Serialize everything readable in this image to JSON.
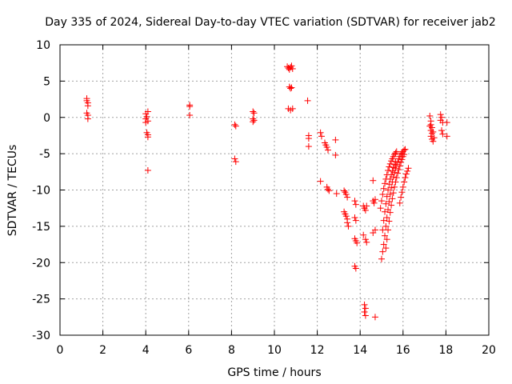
{
  "chart_data": {
    "type": "scatter",
    "title": "Day 335 of 2024, Sidereal Day-to-day VTEC variation (SDTVAR) for receiver jab2",
    "xlabel": "GPS time / hours",
    "ylabel": "SDTVAR / TECUs",
    "xlim": [
      0,
      20
    ],
    "ylim": [
      -30,
      10
    ],
    "xticks": [
      0,
      2,
      4,
      6,
      8,
      10,
      12,
      14,
      16,
      18,
      20
    ],
    "yticks": [
      -30,
      -25,
      -20,
      -15,
      -10,
      -5,
      0,
      5,
      10
    ],
    "grid": true,
    "marker": "+",
    "color": "#ff0000",
    "series": [
      {
        "name": "SDTVAR",
        "points": [
          [
            1.25,
            2.6
          ],
          [
            1.25,
            2.3
          ],
          [
            1.3,
            2.0
          ],
          [
            1.3,
            1.6
          ],
          [
            1.25,
            0.6
          ],
          [
            1.3,
            0.3
          ],
          [
            1.3,
            -0.2
          ],
          [
            4.0,
            0.5
          ],
          [
            4.1,
            0.8
          ],
          [
            4.05,
            0.1
          ],
          [
            4.0,
            -0.2
          ],
          [
            4.1,
            -0.5
          ],
          [
            4.0,
            -0.7
          ],
          [
            4.05,
            -2.1
          ],
          [
            4.1,
            -2.4
          ],
          [
            4.1,
            -2.7
          ],
          [
            4.1,
            -7.3
          ],
          [
            6.05,
            1.7
          ],
          [
            6.05,
            1.5
          ],
          [
            6.05,
            0.3
          ],
          [
            8.15,
            -1.0
          ],
          [
            8.2,
            -1.2
          ],
          [
            8.15,
            -5.7
          ],
          [
            8.2,
            -6.1
          ],
          [
            9.0,
            0.8
          ],
          [
            9.05,
            0.6
          ],
          [
            9.0,
            -0.2
          ],
          [
            9.05,
            -0.4
          ],
          [
            9.0,
            -0.6
          ],
          [
            10.6,
            7.0
          ],
          [
            10.65,
            6.8
          ],
          [
            10.7,
            6.6
          ],
          [
            10.75,
            6.9
          ],
          [
            10.8,
            7.1
          ],
          [
            10.85,
            6.7
          ],
          [
            10.7,
            4.2
          ],
          [
            10.75,
            4.0
          ],
          [
            10.8,
            4.1
          ],
          [
            10.65,
            1.2
          ],
          [
            10.75,
            1.0
          ],
          [
            10.85,
            1.2
          ],
          [
            11.55,
            2.3
          ],
          [
            11.6,
            -2.5
          ],
          [
            11.6,
            -2.9
          ],
          [
            11.6,
            -4.0
          ],
          [
            12.15,
            -2.1
          ],
          [
            12.2,
            -2.6
          ],
          [
            12.15,
            -8.8
          ],
          [
            12.35,
            -3.5
          ],
          [
            12.4,
            -3.8
          ],
          [
            12.45,
            -4.1
          ],
          [
            12.5,
            -4.5
          ],
          [
            12.45,
            -9.6
          ],
          [
            12.5,
            -9.9
          ],
          [
            12.55,
            -10.1
          ],
          [
            12.85,
            -3.1
          ],
          [
            12.85,
            -5.2
          ],
          [
            12.9,
            -10.5
          ],
          [
            13.25,
            -10.1
          ],
          [
            13.3,
            -10.3
          ],
          [
            13.35,
            -10.6
          ],
          [
            13.4,
            -11.0
          ],
          [
            13.25,
            -13.0
          ],
          [
            13.3,
            -13.3
          ],
          [
            13.35,
            -13.6
          ],
          [
            13.4,
            -14.0
          ],
          [
            13.4,
            -14.5
          ],
          [
            13.45,
            -15.0
          ],
          [
            13.75,
            -11.5
          ],
          [
            13.8,
            -12.0
          ],
          [
            13.75,
            -13.8
          ],
          [
            13.8,
            -14.2
          ],
          [
            13.75,
            -16.7
          ],
          [
            13.8,
            -17.0
          ],
          [
            13.85,
            -17.3
          ],
          [
            13.75,
            -20.5
          ],
          [
            13.8,
            -20.8
          ],
          [
            14.15,
            -12.2
          ],
          [
            14.2,
            -12.5
          ],
          [
            14.25,
            -12.8
          ],
          [
            14.3,
            -12.2
          ],
          [
            14.15,
            -16.2
          ],
          [
            14.25,
            -16.8
          ],
          [
            14.3,
            -17.2
          ],
          [
            14.2,
            -25.8
          ],
          [
            14.25,
            -26.3
          ],
          [
            14.2,
            -26.8
          ],
          [
            14.25,
            -27.3
          ],
          [
            14.6,
            -8.7
          ],
          [
            14.6,
            -11.5
          ],
          [
            14.65,
            -11.8
          ],
          [
            14.7,
            -11.3
          ],
          [
            14.6,
            -15.9
          ],
          [
            14.7,
            -15.5
          ],
          [
            14.7,
            -27.5
          ],
          [
            15.0,
            -19.5
          ],
          [
            15.05,
            -18.5
          ],
          [
            15.1,
            -17.5
          ],
          [
            15.15,
            -16.3
          ],
          [
            15.2,
            -15.0
          ],
          [
            15.25,
            -13.8
          ],
          [
            15.3,
            -12.7
          ],
          [
            15.35,
            -11.6
          ],
          [
            15.4,
            -10.6
          ],
          [
            15.45,
            -9.7
          ],
          [
            15.5,
            -8.9
          ],
          [
            15.55,
            -8.2
          ],
          [
            15.6,
            -7.6
          ],
          [
            15.65,
            -7.0
          ],
          [
            15.7,
            -6.5
          ],
          [
            15.75,
            -6.1
          ],
          [
            15.8,
            -5.7
          ],
          [
            15.85,
            -5.4
          ],
          [
            15.9,
            -5.1
          ],
          [
            15.95,
            -4.9
          ],
          [
            16.0,
            -4.7
          ],
          [
            16.05,
            -4.5
          ],
          [
            16.1,
            -4.4
          ],
          [
            14.95,
            -12.5
          ],
          [
            15.0,
            -11.5
          ],
          [
            15.05,
            -10.6
          ],
          [
            15.1,
            -9.8
          ],
          [
            15.15,
            -9.1
          ],
          [
            15.2,
            -8.5
          ],
          [
            15.25,
            -7.9
          ],
          [
            15.3,
            -7.3
          ],
          [
            15.35,
            -6.8
          ],
          [
            15.4,
            -6.4
          ],
          [
            15.45,
            -6.0
          ],
          [
            15.5,
            -5.7
          ],
          [
            15.55,
            -5.4
          ],
          [
            15.6,
            -5.1
          ],
          [
            15.65,
            -4.9
          ],
          [
            15.7,
            -4.7
          ],
          [
            15.05,
            -15.5
          ],
          [
            15.1,
            -14.2
          ],
          [
            15.15,
            -13.0
          ],
          [
            15.2,
            -11.9
          ],
          [
            15.25,
            -10.9
          ],
          [
            15.3,
            -10.0
          ],
          [
            15.35,
            -9.2
          ],
          [
            15.4,
            -8.5
          ],
          [
            15.45,
            -7.9
          ],
          [
            15.5,
            -7.4
          ],
          [
            15.55,
            -6.9
          ],
          [
            15.6,
            -6.5
          ],
          [
            15.65,
            -6.1
          ],
          [
            15.2,
            -18.0
          ],
          [
            15.25,
            -16.8
          ],
          [
            15.3,
            -15.5
          ],
          [
            15.35,
            -14.3
          ],
          [
            15.4,
            -13.1
          ],
          [
            15.45,
            -12.1
          ],
          [
            15.5,
            -11.2
          ],
          [
            15.55,
            -10.4
          ],
          [
            15.6,
            -9.6
          ],
          [
            15.65,
            -8.9
          ],
          [
            15.7,
            -8.3
          ],
          [
            15.75,
            -7.7
          ],
          [
            15.8,
            -7.2
          ],
          [
            15.85,
            -6.7
          ],
          [
            15.9,
            -6.2
          ],
          [
            15.95,
            -5.8
          ],
          [
            16.0,
            -5.4
          ],
          [
            16.05,
            -5.1
          ],
          [
            15.85,
            -11.8
          ],
          [
            15.9,
            -11.0
          ],
          [
            15.95,
            -10.3
          ],
          [
            16.0,
            -9.6
          ],
          [
            16.05,
            -8.9
          ],
          [
            16.1,
            -8.3
          ],
          [
            16.15,
            -7.8
          ],
          [
            16.2,
            -7.4
          ],
          [
            16.25,
            -7.0
          ],
          [
            17.25,
            0.2
          ],
          [
            17.3,
            -0.5
          ],
          [
            17.3,
            -1.0
          ],
          [
            17.35,
            -1.4
          ],
          [
            17.3,
            -1.8
          ],
          [
            17.35,
            -2.2
          ],
          [
            17.3,
            -2.6
          ],
          [
            17.35,
            -3.0
          ],
          [
            17.4,
            -3.3
          ],
          [
            17.25,
            -1.2
          ],
          [
            17.4,
            -2.0
          ],
          [
            17.45,
            -2.8
          ],
          [
            17.75,
            0.4
          ],
          [
            17.8,
            0.0
          ],
          [
            17.75,
            -0.4
          ],
          [
            17.85,
            -0.7
          ],
          [
            17.8,
            -1.8
          ],
          [
            17.85,
            -2.3
          ],
          [
            18.05,
            -0.7
          ],
          [
            18.05,
            -2.6
          ]
        ]
      }
    ]
  }
}
